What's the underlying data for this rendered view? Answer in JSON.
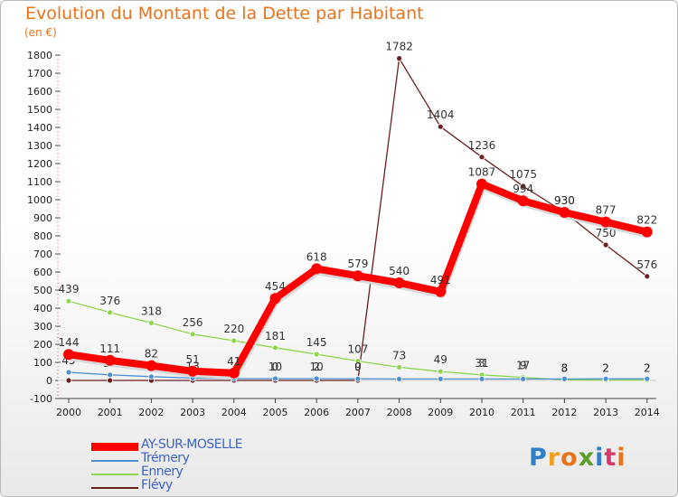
{
  "title": "Evolution du Montant de la Dette par Habitant",
  "subtitle": "(en €)",
  "chart_data": {
    "type": "line",
    "title": "Evolution du Montant de la Dette par Habitant",
    "ylabel": "(en €)",
    "xlabel": "",
    "ylim": [
      -100,
      1800
    ],
    "yticks": [
      -100,
      0,
      100,
      200,
      300,
      400,
      500,
      600,
      700,
      800,
      900,
      1000,
      1100,
      1200,
      1300,
      1400,
      1500,
      1600,
      1700,
      1800
    ],
    "categories": [
      "2000",
      "2001",
      "2002",
      "2003",
      "2004",
      "2005",
      "2006",
      "2007",
      "2008",
      "2009",
      "2010",
      "2011",
      "2012",
      "2013",
      "2014"
    ],
    "series": [
      {
        "name": "Flévy",
        "color": "#6b1f1f",
        "values": [
          0,
          0,
          0,
          0,
          0,
          0,
          0,
          0,
          1782,
          1404,
          1236,
          1075,
          930,
          750,
          576
        ],
        "labels": [
          "",
          "",
          "",
          "",
          "",
          "",
          "",
          "",
          "1782",
          "1404",
          "1236",
          "1075",
          "930",
          "750",
          "576"
        ]
      },
      {
        "name": "Ennery",
        "color": "#8fd64c",
        "values": [
          439,
          376,
          318,
          256,
          220,
          181,
          145,
          107,
          73,
          49,
          31,
          17,
          3,
          2,
          2
        ],
        "labels": [
          "439",
          "376",
          "318",
          "256",
          "220",
          "181",
          "145",
          "107",
          "73",
          "49",
          "31",
          "17",
          "3",
          "2",
          "2"
        ]
      },
      {
        "name": "Trémery",
        "color": "#4d8fd1",
        "values": [
          45,
          31,
          21,
          13,
          10,
          10,
          10,
          9,
          8,
          8,
          8,
          8,
          8,
          9,
          9
        ],
        "labels": [
          "45",
          "31",
          "",
          "13",
          "",
          "10",
          "10",
          "9",
          "",
          "",
          "",
          "",
          "",
          "",
          ""
        ]
      },
      {
        "name": "AY-SUR-MOSELLE",
        "color": "#ff0000",
        "values": [
          144,
          111,
          82,
          51,
          41,
          454,
          618,
          579,
          540,
          491,
          1087,
          994,
          930,
          877,
          822
        ],
        "labels": [
          "144",
          "111",
          "82",
          "51",
          "41",
          "454",
          "618",
          "579",
          "540",
          "491",
          "1087",
          "994",
          "930",
          "877",
          "822"
        ]
      }
    ],
    "extra_labels": [
      {
        "text": "0",
        "x": "2005",
        "y": 10
      },
      {
        "text": "2",
        "x": "2006",
        "y": 10
      },
      {
        "text": "0",
        "x": "2007",
        "y": 10
      },
      {
        "text": "3",
        "x": "2010",
        "y": 31
      },
      {
        "text": "9",
        "x": "2011",
        "y": 17
      },
      {
        "text": "8",
        "x": "2012",
        "y": 3
      },
      {
        "text": "2",
        "x": "2013",
        "y": 2
      },
      {
        "text": "2",
        "x": "2014",
        "y": 2
      }
    ],
    "legend": [
      "AY-SUR-MOSELLE",
      "Trémery",
      "Ennery",
      "Flévy"
    ],
    "legend_position": "bottom-left",
    "grid": false
  },
  "logo": {
    "text": "Proxiti",
    "letters": [
      "P",
      "r",
      "o",
      "x",
      "i",
      "t",
      "i"
    ],
    "colors": [
      "#2f7fc8",
      "#f0a020",
      "#e8731b",
      "#5aa02a",
      "#2f7fc8",
      "#d83a6a",
      "#e8731b"
    ]
  }
}
